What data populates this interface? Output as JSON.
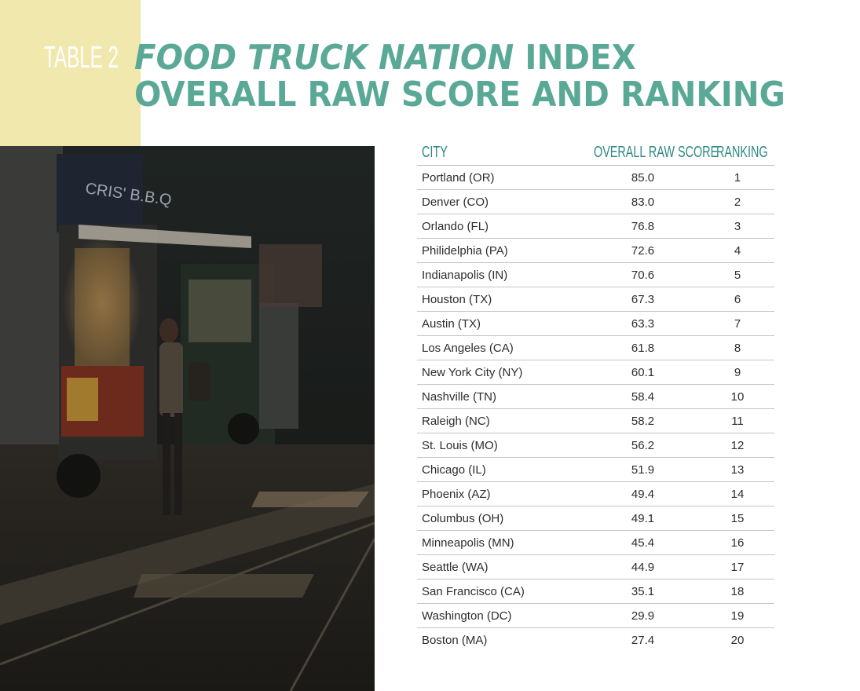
{
  "header": {
    "table_label": "TABLE 2",
    "title_line1_italic": "FOOD TRUCK NATION",
    "title_line1_rest": "INDEX",
    "title_line2": "OVERALL RAW SCORE AND RANKING"
  },
  "colors": {
    "accent": "#5aa896",
    "header_text": "#2e8a80",
    "yellow_block": "#f1e8ad"
  },
  "photo": {
    "truck_sign": "CRIS' B.B.Q",
    "description_icon": "food-truck-night-photo"
  },
  "table": {
    "columns": [
      "CITY",
      "OVERALL RAW SCORE",
      "RANKING"
    ],
    "rows": [
      {
        "city": "Portland (OR)",
        "score": "85.0",
        "rank": "1"
      },
      {
        "city": "Denver (CO)",
        "score": "83.0",
        "rank": "2"
      },
      {
        "city": "Orlando (FL)",
        "score": "76.8",
        "rank": "3"
      },
      {
        "city": "Philidelphia (PA)",
        "score": "72.6",
        "rank": "4"
      },
      {
        "city": "Indianapolis (IN)",
        "score": "70.6",
        "rank": "5"
      },
      {
        "city": "Houston (TX)",
        "score": "67.3",
        "rank": "6"
      },
      {
        "city": "Austin (TX)",
        "score": "63.3",
        "rank": "7"
      },
      {
        "city": "Los Angeles (CA)",
        "score": "61.8",
        "rank": "8"
      },
      {
        "city": "New York City (NY)",
        "score": "60.1",
        "rank": "9"
      },
      {
        "city": "Nashville (TN)",
        "score": "58.4",
        "rank": "10"
      },
      {
        "city": "Raleigh (NC)",
        "score": "58.2",
        "rank": "11"
      },
      {
        "city": "St. Louis (MO)",
        "score": "56.2",
        "rank": "12"
      },
      {
        "city": "Chicago (IL)",
        "score": "51.9",
        "rank": "13"
      },
      {
        "city": "Phoenix (AZ)",
        "score": "49.4",
        "rank": "14"
      },
      {
        "city": "Columbus (OH)",
        "score": "49.1",
        "rank": "15"
      },
      {
        "city": "Minneapolis (MN)",
        "score": "45.4",
        "rank": "16"
      },
      {
        "city": "Seattle (WA)",
        "score": "44.9",
        "rank": "17"
      },
      {
        "city": "San Francisco (CA)",
        "score": "35.1",
        "rank": "18"
      },
      {
        "city": "Washington (DC)",
        "score": "29.9",
        "rank": "19"
      },
      {
        "city": "Boston (MA)",
        "score": "27.4",
        "rank": "20"
      }
    ]
  }
}
